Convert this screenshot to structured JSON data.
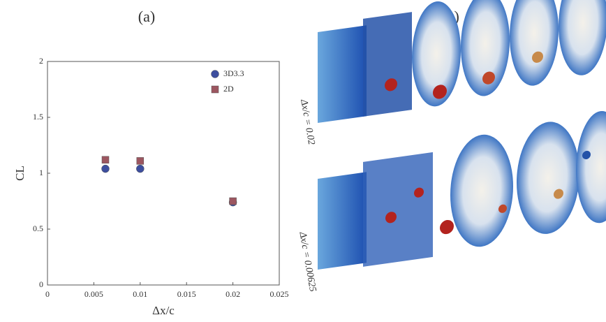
{
  "chart_data": {
    "type": "scatter",
    "title": "(a)",
    "xlabel": "Δx/c",
    "ylabel": "CL",
    "xlim": [
      0,
      0.025
    ],
    "xticks": [
      0,
      0.005,
      0.01,
      0.015,
      0.02,
      0.025
    ],
    "ylim": [
      0,
      2
    ],
    "yticks": [
      0,
      0.5,
      1,
      1.5,
      2
    ],
    "legend": "upper right",
    "series": [
      {
        "name": "3D3.3",
        "color": "#3d4e9e",
        "marker": "circle",
        "x": [
          0.00625,
          0.01,
          0.02
        ],
        "values": [
          1.04,
          1.04,
          0.74
        ]
      },
      {
        "name": "2D",
        "color": "#9c5660",
        "marker": "square",
        "x": [
          0.00625,
          0.01,
          0.02
        ],
        "values": [
          1.12,
          1.11,
          0.75
        ]
      }
    ]
  },
  "panel_b": {
    "title": "(b)",
    "captions": [
      "Δx/c = 0.02",
      "Δx/c = 0.00625"
    ]
  }
}
